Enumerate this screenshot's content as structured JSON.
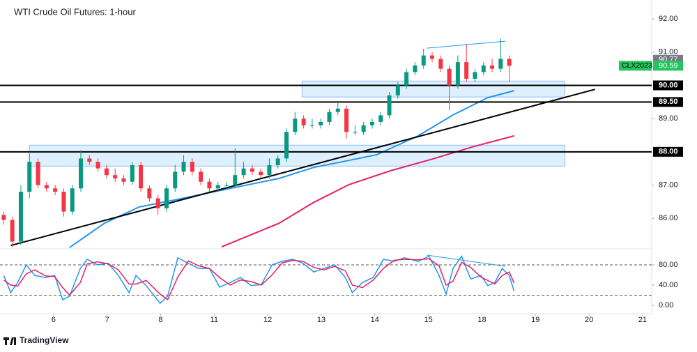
{
  "chart_data": [
    {
      "type": "candlestick",
      "title": "WTI Crude Oil Futures: 1-hour",
      "symbol": "CLX2023",
      "up_color": "#089981",
      "down_color": "#f23645",
      "x": [
        0.07,
        0.23,
        0.39,
        0.55,
        0.71,
        0.87,
        1.03,
        1.19,
        1.35,
        1.51,
        1.67,
        1.83,
        1.99,
        2.15,
        2.31,
        2.47,
        2.63,
        2.79,
        2.95,
        3.11,
        3.27,
        3.43,
        3.59,
        3.75,
        3.91,
        4.07,
        4.23,
        4.39,
        4.55,
        4.71,
        4.87,
        5.03,
        5.19,
        5.35,
        5.51,
        5.67,
        5.83,
        5.99,
        6.15,
        6.31,
        6.47,
        6.63,
        6.79,
        6.95,
        7.11,
        7.27,
        7.43,
        7.59,
        7.75,
        7.91,
        8.07,
        8.23,
        8.39,
        8.55,
        8.71,
        8.87,
        9.03,
        9.19,
        9.35,
        9.51
      ],
      "open": [
        86.1,
        85.95,
        85.3,
        86.8,
        87.7,
        87.0,
        86.9,
        86.8,
        86.2,
        86.9,
        87.8,
        87.7,
        87.5,
        87.3,
        87.2,
        87.1,
        87.6,
        86.9,
        86.6,
        86.3,
        86.9,
        87.4,
        87.7,
        87.4,
        87.1,
        86.9,
        87.0,
        87.0,
        87.3,
        87.5,
        87.4,
        87.3,
        87.6,
        87.8,
        88.6,
        89.0,
        88.8,
        88.8,
        88.9,
        89.2,
        89.3,
        88.6,
        88.6,
        88.8,
        88.9,
        89.1,
        89.7,
        90.0,
        90.4,
        90.6,
        90.9,
        90.8,
        90.5,
        90.0,
        90.7,
        90.2,
        90.4,
        90.6,
        90.5,
        90.8
      ],
      "high": [
        86.2,
        86.05,
        87.0,
        88.0,
        87.8,
        87.1,
        87.0,
        86.9,
        87.0,
        88.05,
        87.9,
        87.8,
        87.6,
        87.5,
        87.3,
        87.7,
        87.7,
        87.0,
        86.7,
        87.0,
        87.6,
        87.9,
        87.8,
        87.5,
        87.2,
        87.1,
        87.1,
        88.1,
        87.7,
        87.6,
        87.5,
        87.8,
        87.9,
        88.7,
        89.2,
        89.1,
        89.0,
        89.0,
        89.3,
        89.5,
        89.4,
        88.8,
        88.9,
        89.0,
        89.2,
        89.8,
        90.1,
        90.5,
        90.7,
        91.1,
        91.0,
        90.9,
        90.6,
        90.9,
        91.25,
        90.5,
        90.7,
        90.8,
        91.4,
        90.9
      ],
      "low": [
        85.8,
        85.15,
        85.2,
        86.6,
        86.9,
        86.8,
        86.7,
        86.05,
        86.1,
        86.8,
        87.6,
        87.4,
        87.2,
        87.1,
        87.0,
        87.0,
        86.8,
        86.5,
        86.1,
        86.2,
        86.8,
        87.3,
        87.3,
        87.0,
        86.8,
        86.8,
        86.9,
        86.9,
        87.2,
        87.3,
        87.2,
        87.2,
        87.5,
        87.7,
        88.5,
        88.7,
        88.7,
        88.7,
        88.8,
        89.1,
        88.4,
        88.5,
        88.5,
        88.7,
        88.8,
        89.0,
        89.6,
        89.9,
        90.3,
        90.5,
        90.7,
        90.4,
        89.25,
        89.9,
        90.1,
        90.1,
        90.3,
        90.4,
        90.4,
        90.1
      ],
      "close": [
        85.95,
        85.3,
        86.8,
        87.7,
        87.0,
        86.9,
        86.8,
        86.2,
        86.9,
        87.8,
        87.7,
        87.5,
        87.3,
        87.2,
        87.1,
        87.6,
        86.9,
        86.6,
        86.3,
        86.9,
        87.4,
        87.7,
        87.4,
        87.1,
        86.9,
        87.0,
        87.0,
        87.3,
        87.5,
        87.4,
        87.3,
        87.6,
        87.8,
        88.6,
        89.0,
        88.8,
        88.8,
        88.9,
        89.2,
        89.3,
        88.6,
        88.6,
        88.8,
        88.9,
        89.1,
        89.7,
        90.0,
        90.4,
        90.6,
        90.9,
        90.8,
        90.5,
        90.0,
        90.7,
        90.2,
        90.4,
        90.6,
        90.5,
        90.8,
        90.59
      ],
      "moving_averages": [
        {
          "color": "#2196f3",
          "x": [
            1.3,
            1.95,
            2.6,
            3.26,
            4.3,
            5.21,
            5.86,
            6.51,
            7.03,
            7.81,
            8.46,
            9.11,
            9.6
          ],
          "values": [
            85.12,
            85.85,
            86.34,
            86.55,
            86.9,
            87.2,
            87.53,
            87.74,
            87.91,
            88.48,
            89.11,
            89.63,
            89.84
          ]
        },
        {
          "color": "#e91e63",
          "x": [
            4.14,
            5.21,
            5.86,
            6.51,
            7.29,
            8.07,
            8.85,
            9.6
          ],
          "values": [
            85.14,
            85.85,
            86.48,
            87.01,
            87.43,
            87.78,
            88.16,
            88.48
          ]
        }
      ],
      "lines": [
        {
          "color": "#000000",
          "x": [
            0.2,
            11.11
          ],
          "values": [
            85.18,
            89.88
          ]
        },
        {
          "color": "#2196f3",
          "x": [
            7.97,
            9.44
          ],
          "values": [
            91.12,
            91.33
          ]
        }
      ],
      "zones": [
        {
          "x": [
            5.64,
            10.55
          ],
          "values": [
            90.13,
            89.65
          ]
        },
        {
          "x": [
            0.55,
            10.55
          ],
          "values": [
            88.2,
            87.57
          ]
        }
      ],
      "levels": [
        {
          "value": 90.0,
          "label": "90.00"
        },
        {
          "value": 89.5,
          "label": "89.50"
        },
        {
          "value": 88.0,
          "label": "88.00"
        }
      ],
      "price_labels": [
        {
          "value": 90.77,
          "label": "90.77",
          "color": "#787b86"
        },
        {
          "value": 90.59,
          "label": "90.59",
          "color": "#22c55e"
        }
      ],
      "xlim": [
        0,
        12.17
      ],
      "xticks": [
        {
          "value": 1,
          "label": "6"
        },
        {
          "value": 2,
          "label": "7"
        },
        {
          "value": 3,
          "label": "8"
        },
        {
          "value": 4,
          "label": "11"
        },
        {
          "value": 5,
          "label": "12"
        },
        {
          "value": 6,
          "label": "13"
        },
        {
          "value": 7,
          "label": "14"
        },
        {
          "value": 8,
          "label": "15"
        },
        {
          "value": 9,
          "label": "18"
        },
        {
          "value": 10,
          "label": "19"
        },
        {
          "value": 11,
          "label": "20"
        },
        {
          "value": 12,
          "label": "21"
        }
      ],
      "ylim": [
        85.08,
        92.57
      ],
      "yticks": [
        {
          "value": 92,
          "label": "92.00"
        },
        {
          "value": 91,
          "label": "91.00"
        },
        {
          "value": 89,
          "label": "89.00"
        },
        {
          "value": 87,
          "label": "87.00"
        },
        {
          "value": 86,
          "label": "86.00"
        }
      ]
    },
    {
      "type": "line",
      "x": [
        0.07,
        0.2,
        0.33,
        0.49,
        0.65,
        0.85,
        1.02,
        1.17,
        1.3,
        1.5,
        1.63,
        1.82,
        2.02,
        2.21,
        2.41,
        2.54,
        2.73,
        2.99,
        3.13,
        3.32,
        3.52,
        3.71,
        3.91,
        4.1,
        4.3,
        4.49,
        4.69,
        4.88,
        5.08,
        5.27,
        5.47,
        5.66,
        5.86,
        6.05,
        6.25,
        6.45,
        6.58,
        6.77,
        6.97,
        7.16,
        7.36,
        7.55,
        7.81,
        8.01,
        8.2,
        8.33,
        8.46,
        8.62,
        8.79,
        8.98,
        9.11,
        9.24,
        9.38,
        9.51,
        9.6
      ],
      "series": [
        {
          "color": "#2196f3",
          "values": [
            59,
            25,
            45,
            80,
            59,
            55,
            59,
            11,
            18,
            73,
            91,
            80,
            83,
            59,
            25,
            59,
            39,
            4,
            18,
            94,
            83,
            73,
            73,
            36,
            45,
            55,
            39,
            41,
            80,
            87,
            91,
            83,
            66,
            73,
            80,
            55,
            25,
            45,
            55,
            91,
            87,
            94,
            87,
            97,
            59,
            22,
            73,
            97,
            52,
            59,
            39,
            45,
            73,
            59,
            28
          ]
        },
        {
          "color": "#e91e63",
          "values": [
            50,
            40,
            38,
            62,
            70,
            58,
            57,
            35,
            20,
            45,
            82,
            86,
            82,
            70,
            42,
            42,
            49,
            22,
            11,
            56,
            88,
            78,
            73,
            55,
            40,
            50,
            47,
            40,
            60,
            84,
            89,
            87,
            75,
            70,
            77,
            68,
            40,
            35,
            50,
            73,
            89,
            91,
            90,
            92,
            78,
            40,
            48,
            85,
            75,
            56,
            49,
            42,
            59,
            66,
            44
          ]
        }
      ],
      "lines": [
        {
          "color": "#2196f3",
          "x": [
            7.97,
            9.44
          ],
          "values": [
            99.3,
            77.2
          ]
        }
      ],
      "levels": [
        80,
        20
      ],
      "ylim": [
        -16.6,
        111.7
      ],
      "yticks": [
        {
          "value": 80,
          "label": "80.00"
        },
        {
          "value": 40,
          "label": "40.00"
        },
        {
          "value": 0,
          "label": "0.00"
        }
      ]
    }
  ],
  "footer": "TradingView"
}
